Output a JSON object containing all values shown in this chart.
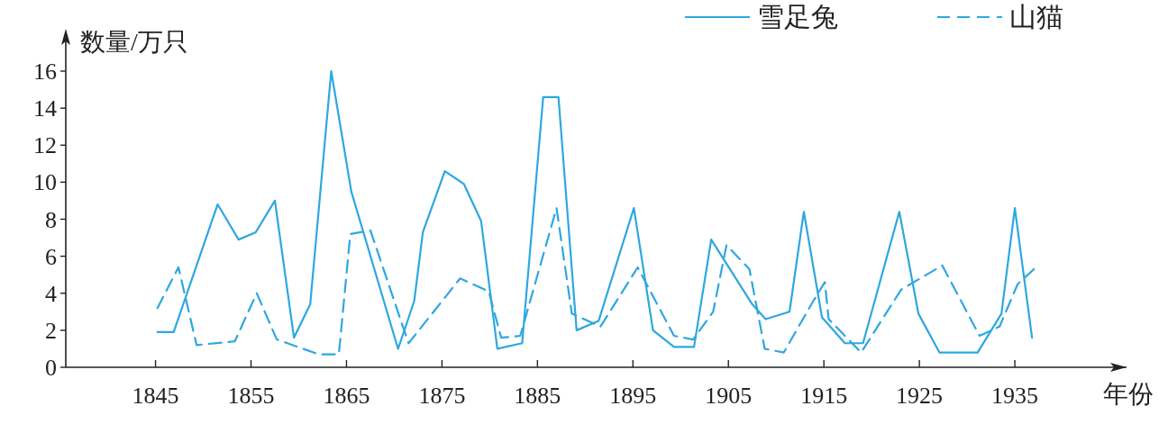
{
  "chart_data": {
    "type": "line",
    "ylabel": "数量/万只",
    "xlabel": "年份",
    "xlim": [
      1835.6,
      1946.7
    ],
    "ylim": [
      0,
      17.8
    ],
    "xticks": [
      1845,
      1855,
      1865,
      1875,
      1885,
      1895,
      1905,
      1915,
      1925,
      1935
    ],
    "yticks": [
      0,
      2,
      4,
      6,
      8,
      10,
      12,
      14,
      16
    ],
    "grid": false,
    "legend": "top right",
    "marker": "none",
    "series": [
      {
        "name": "雪足兔",
        "color": "#2ea7e0",
        "line_style": "solid",
        "x": [
          1845.2,
          1846.9,
          1851.5,
          1853.7,
          1855.5,
          1857.5,
          1859.5,
          1861.2,
          1863.4,
          1865.5,
          1870.4,
          1871.2,
          1872.1,
          1873.0,
          1875.3,
          1877.3,
          1879.1,
          1880.8,
          1883.4,
          1885.6,
          1887.2,
          1889.1,
          1891.4,
          1895.1,
          1897.1,
          1899.3,
          1901.4,
          1903.2,
          1907.5,
          1908.9,
          1911.4,
          1912.9,
          1914.8,
          1917.2,
          1919.1,
          1922.9,
          1924.9,
          1927.1,
          1931.1,
          1933.6,
          1935.0,
          1936.8
        ],
        "values": [
          1.9,
          1.9,
          8.8,
          6.9,
          7.3,
          9.0,
          1.6,
          3.4,
          16.0,
          9.5,
          1.0,
          2.2,
          3.6,
          7.3,
          10.6,
          9.9,
          7.9,
          1.0,
          1.3,
          14.6,
          14.6,
          2.0,
          2.5,
          8.6,
          2.0,
          1.1,
          1.1,
          6.9,
          3.4,
          2.6,
          3.0,
          8.4,
          2.7,
          1.3,
          1.3,
          8.4,
          2.9,
          0.8,
          0.8,
          2.9,
          8.6,
          1.6
        ]
      },
      {
        "name": "山猫",
        "color": "#2ea7e0",
        "line_style": "dashed",
        "x": [
          1845.2,
          1847.4,
          1849.3,
          1853.3,
          1855.6,
          1857.7,
          1862.1,
          1864.2,
          1865.4,
          1867.5,
          1871.5,
          1876.9,
          1879.9,
          1881.2,
          1883.2,
          1887.0,
          1888.6,
          1891.6,
          1895.5,
          1899.3,
          1901.3,
          1903.4,
          1904.8,
          1907.2,
          1908.8,
          1910.8,
          1913.8,
          1915.1,
          1915.5,
          1918.9,
          1923.1,
          1927.4,
          1931.3,
          1933.4,
          1935.3,
          1937.0
        ],
        "values": [
          3.2,
          5.4,
          1.2,
          1.4,
          4.0,
          1.5,
          0.7,
          0.7,
          7.2,
          7.4,
          1.3,
          4.8,
          4.1,
          1.6,
          1.7,
          8.6,
          2.9,
          2.2,
          5.4,
          1.7,
          1.5,
          3.0,
          6.6,
          5.3,
          1.0,
          0.8,
          3.5,
          4.6,
          2.6,
          0.8,
          4.2,
          5.5,
          1.7,
          2.2,
          4.5,
          5.3
        ]
      }
    ]
  }
}
